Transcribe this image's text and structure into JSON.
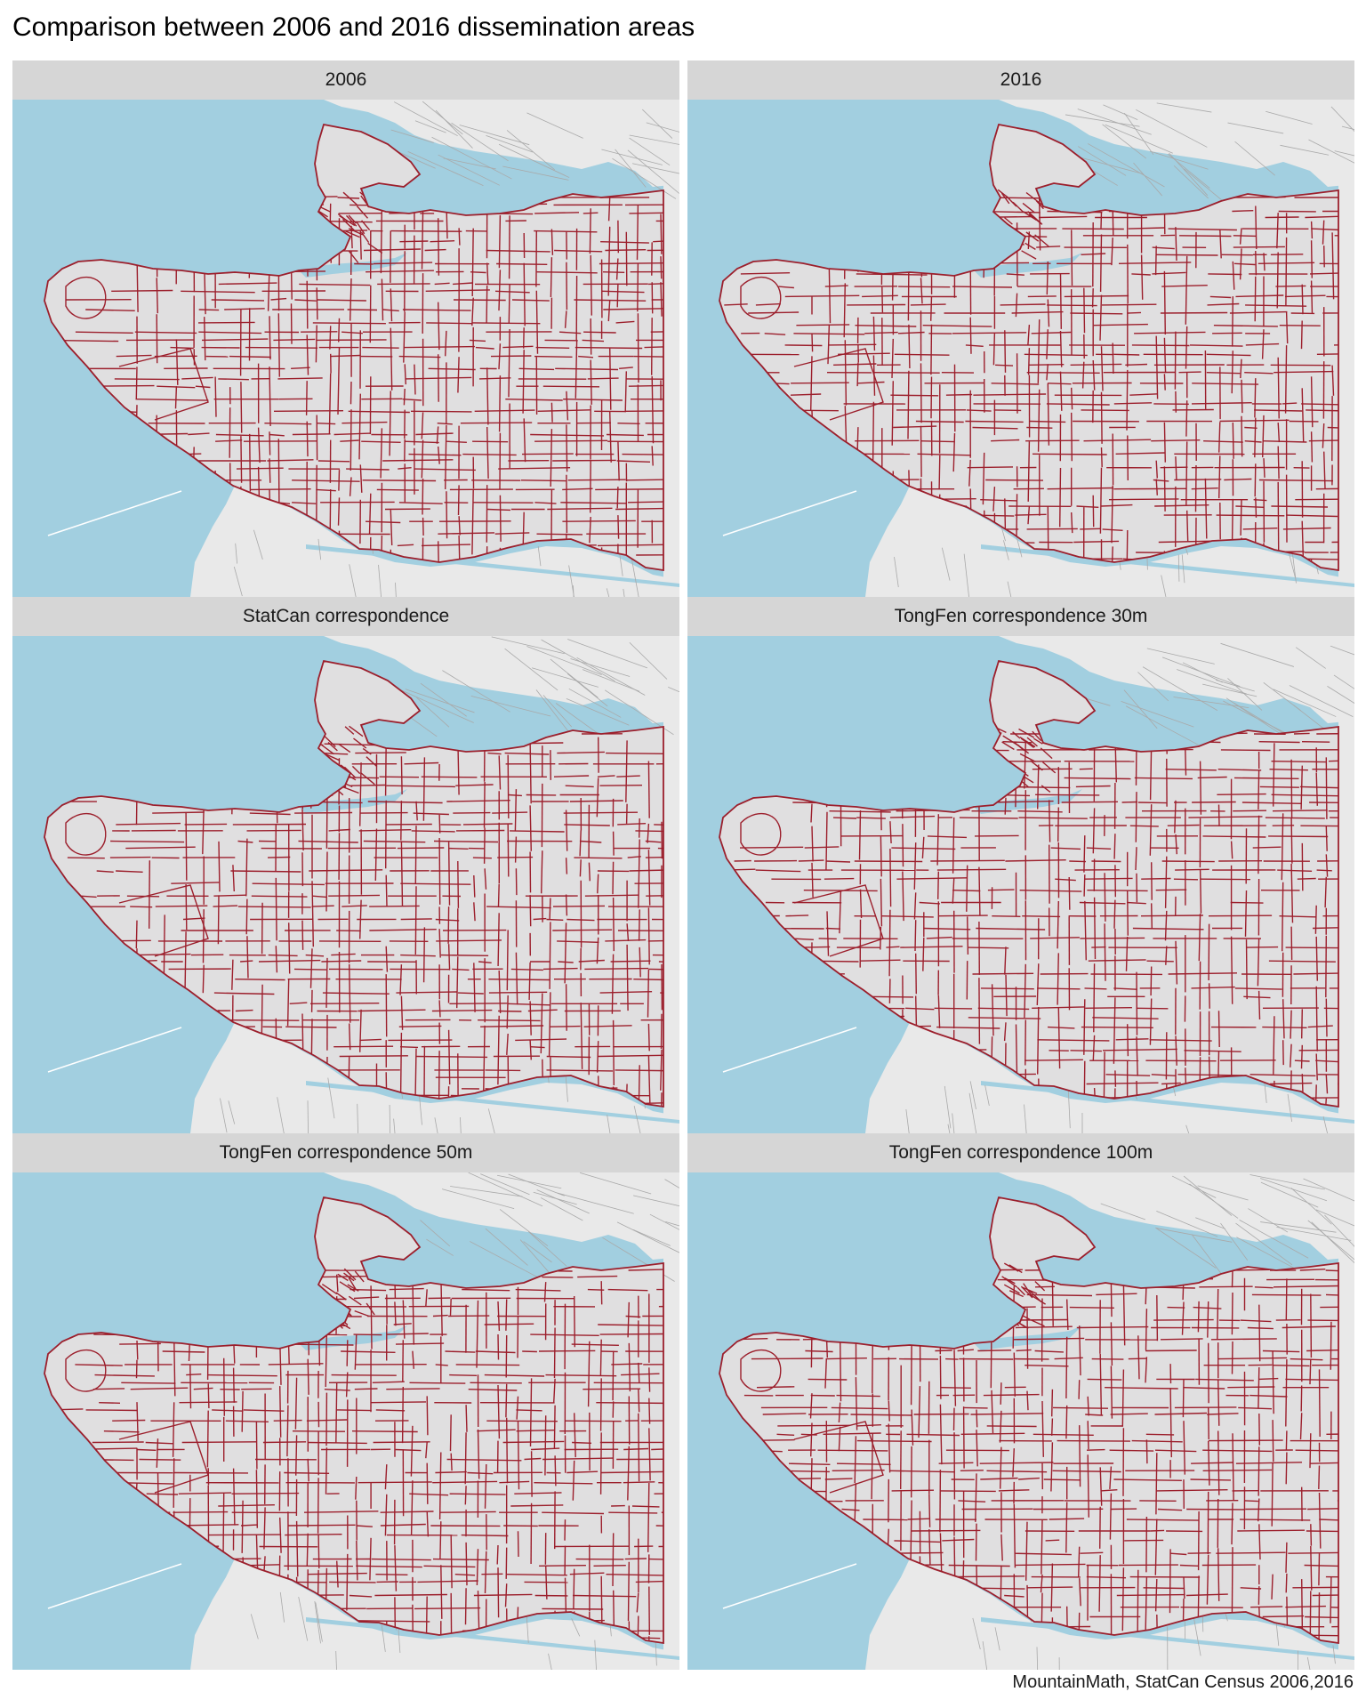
{
  "figure": {
    "title": "Comparison between 2006 and 2016 dissemination areas",
    "caption": "MountainMath, StatCan Census 2006,2016"
  },
  "colors": {
    "water": "#a2cfe0",
    "land_outside": "#e9e9e9",
    "land_city": "#e0dfe0",
    "roads": "#a9a9a9",
    "boundaries": "#9c1f2c",
    "strip_background": "#d6d6d6"
  },
  "panels": [
    {
      "label": "2006"
    },
    {
      "label": "2016"
    },
    {
      "label": "StatCan correspondence"
    },
    {
      "label": "TongFen correspondence 30m"
    },
    {
      "label": "TongFen correspondence 50m"
    },
    {
      "label": "TongFen correspondence 100m"
    }
  ]
}
